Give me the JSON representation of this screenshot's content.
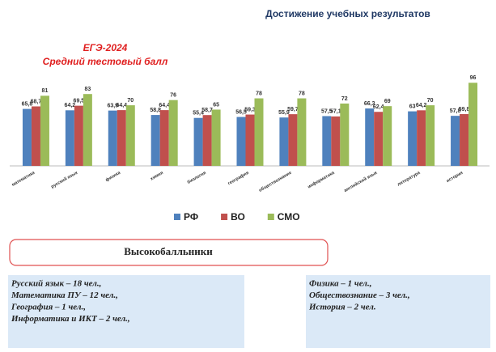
{
  "title": "Достижение учебных  результатов",
  "chart_data": {
    "type": "bar",
    "title": "ЕГЭ-2024",
    "subtitle": "Средний тестовый балл",
    "categories": [
      "математика",
      "русский язык",
      "физика",
      "химия",
      "биология",
      "география",
      "обществознание",
      "информатика",
      "английский язык",
      "литература",
      "история"
    ],
    "series": [
      {
        "name": "РФ",
        "color": "#4f81bd",
        "values": [
          65.8,
          64.2,
          63.9,
          58.8,
          55.4,
          56.5,
          55.9,
          57.5,
          66.3,
          63,
          57.8
        ],
        "value_labels": [
          "65,8",
          "64,2",
          "63,9",
          "58,8",
          "55,4",
          "56,5",
          "55,9",
          "57,5",
          "66,3",
          "63",
          "57,8"
        ]
      },
      {
        "name": "ВО",
        "color": "#c0504d",
        "values": [
          68.7,
          69.5,
          64.4,
          64.4,
          58.7,
          59.3,
          59.7,
          57.1,
          62.4,
          64.2,
          59.8
        ],
        "value_labels": [
          "68,7",
          "69,5",
          "64,4",
          "64,4",
          "58,7",
          "59,3",
          "59,7",
          "57,1",
          "62,4",
          "64,2",
          "59,8"
        ]
      },
      {
        "name": "СМО",
        "color": "#9bbb59",
        "values": [
          81,
          83,
          70,
          76,
          65,
          78,
          78,
          72,
          69,
          70,
          96
        ],
        "value_labels": [
          "81",
          "83",
          "70",
          "76",
          "65",
          "78",
          "78",
          "72",
          "69",
          "70",
          "96"
        ]
      }
    ],
    "ylim": [
      0,
      100
    ],
    "legend": "bottom"
  },
  "banner": "Высокобалльники",
  "left_box": [
    "Русский язык  – 18 чел.,",
    "Математика ПУ – 12 чел.,",
    "География – 1 чел.,",
    "Информатика и ИКТ – 2 чел.,"
  ],
  "right_box": [
    "Физика – 1 чел.,",
    "Обществознание – 3 чел.,",
    "История – 2 чел."
  ]
}
